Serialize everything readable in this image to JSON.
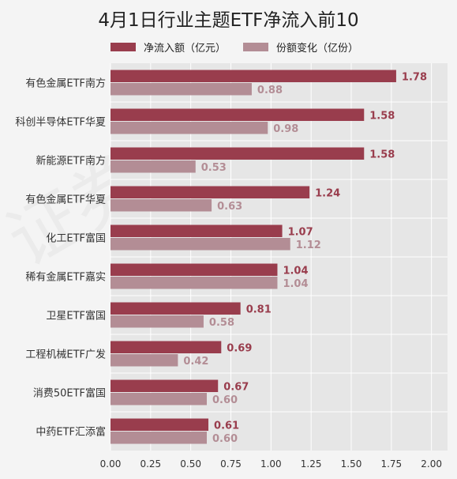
{
  "chart_data": {
    "type": "bar",
    "orientation": "horizontal",
    "title": "4月1日行业主题ETF净流入前10",
    "categories": [
      "有色金属ETF南方",
      "科创半导体ETF华夏",
      "新能源ETF南方",
      "有色金属ETF华夏",
      "化工ETF富国",
      "稀有金属ETF嘉实",
      "卫星ETF富国",
      "工程机械ETF广发",
      "消费50ETF富国",
      "中药ETF汇添富"
    ],
    "series": [
      {
        "name": "净流入额（亿元）",
        "values": [
          1.78,
          1.58,
          1.58,
          1.24,
          1.07,
          1.04,
          0.81,
          0.69,
          0.67,
          0.61
        ],
        "labels": [
          "1.78",
          "1.58",
          "1.58",
          "1.24",
          "1.07",
          "1.04",
          "0.81",
          "0.69",
          "0.67",
          "0.61"
        ],
        "color": "#993d4d"
      },
      {
        "name": "份额变化（亿份）",
        "values": [
          0.88,
          0.98,
          0.53,
          0.63,
          1.12,
          1.04,
          0.58,
          0.42,
          0.6,
          0.6
        ],
        "labels": [
          "0.88",
          "0.98",
          "0.53",
          "0.63",
          "1.12",
          "1.04",
          "0.58",
          "0.42",
          "0.60",
          "0.60"
        ],
        "color": "#b38d95"
      }
    ],
    "xlim": [
      0,
      2.1
    ],
    "xticks": [
      "0.00",
      "0.25",
      "0.50",
      "0.75",
      "1.00",
      "1.25",
      "1.50",
      "1.75",
      "2.00"
    ],
    "grid": true,
    "legend_position": "top"
  },
  "watermark": "证券之星",
  "colors": {
    "background": "#f4f4f4",
    "plot_bg": "#e6e6e6",
    "grid": "#ffffff"
  }
}
